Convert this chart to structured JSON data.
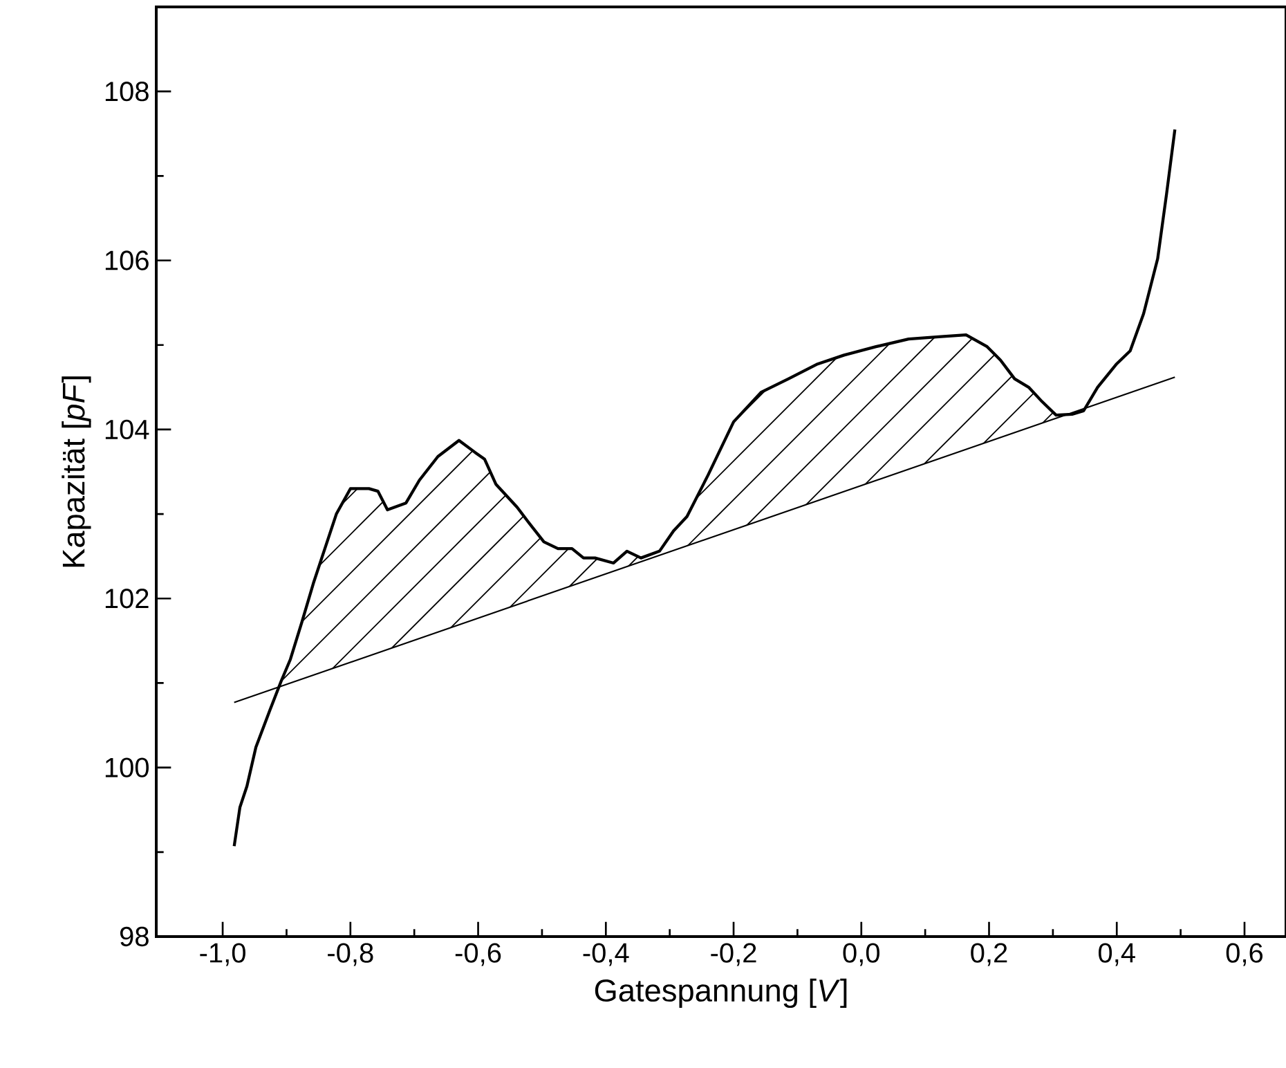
{
  "chart_data": {
    "type": "line",
    "xlabel": "Gatespannung [*V*]",
    "ylabel": "Kapazität [*pF*]",
    "xlim": [
      -1.104,
      0.665
    ],
    "ylim": [
      98,
      109
    ],
    "xticks": [
      {
        "value": -1.0,
        "label": "-1,0"
      },
      {
        "value": -0.8,
        "label": "-0,8"
      },
      {
        "value": -0.6,
        "label": "-0,6"
      },
      {
        "value": -0.4,
        "label": "-0,4"
      },
      {
        "value": -0.2,
        "label": "-0,2"
      },
      {
        "value": 0.0,
        "label": "0,0"
      },
      {
        "value": 0.2,
        "label": "0,2"
      },
      {
        "value": 0.4,
        "label": "0,4"
      },
      {
        "value": 0.6,
        "label": "0,6"
      }
    ],
    "yticks": [
      98,
      100,
      102,
      104,
      106,
      108
    ],
    "series": [
      {
        "color": "#000000",
        "x": [
          -0.982,
          -0.973,
          -0.962,
          -0.948,
          -0.926,
          -0.908,
          -0.894,
          -0.876,
          -0.858,
          -0.84,
          -0.822,
          -0.8,
          -0.771,
          -0.757,
          -0.742,
          -0.713,
          -0.692,
          -0.663,
          -0.63,
          -0.605,
          -0.59,
          -0.572,
          -0.539,
          -0.522,
          -0.497,
          -0.475,
          -0.453,
          -0.435,
          -0.417,
          -0.388,
          -0.367,
          -0.345,
          -0.316,
          -0.294,
          -0.273,
          -0.24,
          -0.2,
          -0.157,
          -0.114,
          -0.07,
          -0.027,
          0.023,
          0.074,
          0.125,
          0.164,
          0.197,
          0.218,
          0.24,
          0.262,
          0.283,
          0.305,
          0.33,
          0.348,
          0.37,
          0.399,
          0.421,
          0.442,
          0.464,
          0.478,
          0.491
        ],
        "values": [
          99.07,
          99.53,
          99.78,
          100.24,
          100.68,
          101.03,
          101.28,
          101.72,
          102.18,
          102.59,
          103.0,
          103.3,
          103.3,
          103.27,
          103.05,
          103.13,
          103.4,
          103.68,
          103.87,
          103.73,
          103.65,
          103.35,
          103.08,
          102.91,
          102.67,
          102.59,
          102.59,
          102.48,
          102.48,
          102.42,
          102.56,
          102.48,
          102.56,
          102.8,
          102.97,
          103.46,
          104.09,
          104.44,
          104.6,
          104.77,
          104.88,
          104.98,
          105.07,
          105.1,
          105.12,
          104.98,
          104.82,
          104.6,
          104.5,
          104.33,
          104.17,
          104.18,
          104.22,
          104.5,
          104.77,
          104.93,
          105.37,
          106.02,
          106.79,
          107.55
        ]
      },
      {
        "color": "#000000",
        "x": [
          -0.982,
          0.491
        ],
        "values": [
          100.77,
          104.62
        ]
      }
    ]
  }
}
